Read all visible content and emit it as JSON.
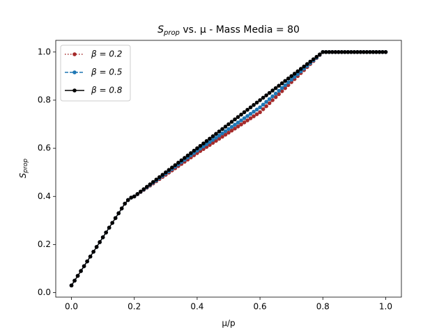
{
  "chart_data": {
    "type": "line",
    "title": [
      "S",
      "prop",
      " vs. μ - Mass Media = 80"
    ],
    "xlabel": "μ/p",
    "ylabel": [
      "S",
      "prop"
    ],
    "x": [
      0,
      0.01,
      0.02,
      0.03,
      0.04,
      0.05,
      0.06,
      0.07,
      0.08,
      0.09,
      0.1,
      0.11,
      0.12,
      0.13,
      0.14,
      0.15,
      0.16,
      0.17,
      0.18,
      0.19,
      0.2,
      0.21,
      0.22,
      0.23,
      0.24,
      0.25,
      0.26,
      0.27,
      0.28,
      0.29,
      0.3,
      0.31,
      0.32,
      0.33,
      0.34,
      0.35,
      0.36,
      0.37,
      0.38,
      0.39,
      0.4,
      0.41,
      0.42,
      0.43,
      0.44,
      0.45,
      0.46,
      0.47,
      0.48,
      0.49,
      0.5,
      0.51,
      0.52,
      0.53,
      0.54,
      0.55,
      0.56,
      0.57,
      0.58,
      0.59,
      0.6,
      0.61,
      0.62,
      0.63,
      0.64,
      0.65,
      0.66,
      0.67,
      0.68,
      0.69,
      0.7,
      0.71,
      0.72,
      0.73,
      0.74,
      0.75,
      0.76,
      0.77,
      0.78,
      0.79,
      0.8,
      0.81,
      0.82,
      0.83,
      0.84,
      0.85,
      0.86,
      0.87,
      0.88,
      0.89,
      0.9,
      0.91,
      0.92,
      0.93,
      0.94,
      0.95,
      0.96,
      0.97,
      0.98,
      0.99,
      1.0
    ],
    "series": [
      {
        "name": "β = 0.2",
        "color": "#a52a2a",
        "linestyle": "dotted",
        "values": [
          0.03,
          0.05,
          0.07,
          0.09,
          0.11,
          0.13,
          0.15,
          0.17,
          0.19,
          0.21,
          0.23,
          0.25,
          0.27,
          0.29,
          0.31,
          0.33,
          0.35,
          0.37,
          0.385,
          0.395,
          0.4,
          0.409,
          0.418,
          0.427,
          0.436,
          0.445,
          0.454,
          0.463,
          0.472,
          0.481,
          0.49,
          0.499,
          0.508,
          0.517,
          0.526,
          0.535,
          0.544,
          0.553,
          0.562,
          0.571,
          0.58,
          0.5885,
          0.597,
          0.6055,
          0.614,
          0.6225,
          0.631,
          0.6395,
          0.648,
          0.6565,
          0.665,
          0.6735,
          0.682,
          0.6905,
          0.699,
          0.7075,
          0.716,
          0.7245,
          0.733,
          0.7415,
          0.75,
          0.7625,
          0.775,
          0.7875,
          0.8,
          0.8125,
          0.825,
          0.8375,
          0.85,
          0.8625,
          0.875,
          0.8875,
          0.9,
          0.9125,
          0.925,
          0.9375,
          0.95,
          0.9625,
          0.975,
          0.9875,
          1.0,
          1.0,
          1.0,
          1.0,
          1.0,
          1.0,
          1.0,
          1.0,
          1.0,
          1.0,
          1.0,
          1.0,
          1.0,
          1.0,
          1.0,
          1.0,
          1.0,
          1.0,
          1.0,
          1.0,
          1.0
        ]
      },
      {
        "name": "β = 0.5",
        "color": "#1f77b4",
        "linestyle": "dashed",
        "values": [
          0.03,
          0.05,
          0.07,
          0.09,
          0.11,
          0.13,
          0.15,
          0.17,
          0.19,
          0.21,
          0.23,
          0.25,
          0.27,
          0.29,
          0.31,
          0.33,
          0.35,
          0.37,
          0.385,
          0.395,
          0.4,
          0.4095,
          0.419,
          0.4285,
          0.438,
          0.4475,
          0.457,
          0.4665,
          0.476,
          0.4855,
          0.495,
          0.5045,
          0.514,
          0.5235,
          0.533,
          0.5425,
          0.552,
          0.5615,
          0.571,
          0.5805,
          0.59,
          0.599,
          0.608,
          0.617,
          0.626,
          0.635,
          0.644,
          0.653,
          0.662,
          0.671,
          0.68,
          0.689,
          0.698,
          0.707,
          0.716,
          0.725,
          0.734,
          0.743,
          0.752,
          0.761,
          0.77,
          0.7815,
          0.793,
          0.8045,
          0.816,
          0.8275,
          0.839,
          0.8505,
          0.862,
          0.8735,
          0.885,
          0.8965,
          0.908,
          0.9195,
          0.931,
          0.9425,
          0.954,
          0.9655,
          0.977,
          0.9885,
          1.0,
          1.0,
          1.0,
          1.0,
          1.0,
          1.0,
          1.0,
          1.0,
          1.0,
          1.0,
          1.0,
          1.0,
          1.0,
          1.0,
          1.0,
          1.0,
          1.0,
          1.0,
          1.0,
          1.0,
          1.0
        ]
      },
      {
        "name": "β = 0.8",
        "color": "#000000",
        "linestyle": "solid",
        "values": [
          0.03,
          0.05,
          0.07,
          0.09,
          0.11,
          0.13,
          0.15,
          0.17,
          0.19,
          0.21,
          0.23,
          0.25,
          0.27,
          0.29,
          0.31,
          0.33,
          0.35,
          0.37,
          0.385,
          0.395,
          0.4,
          0.41,
          0.42,
          0.43,
          0.44,
          0.45,
          0.46,
          0.47,
          0.48,
          0.49,
          0.5,
          0.51,
          0.52,
          0.53,
          0.54,
          0.55,
          0.56,
          0.57,
          0.58,
          0.59,
          0.6,
          0.61,
          0.62,
          0.63,
          0.64,
          0.65,
          0.66,
          0.67,
          0.68,
          0.69,
          0.7,
          0.71,
          0.72,
          0.73,
          0.74,
          0.75,
          0.76,
          0.77,
          0.78,
          0.79,
          0.8,
          0.81,
          0.82,
          0.83,
          0.84,
          0.85,
          0.86,
          0.87,
          0.88,
          0.89,
          0.9,
          0.91,
          0.92,
          0.93,
          0.94,
          0.95,
          0.96,
          0.97,
          0.98,
          0.99,
          1.0,
          1.0,
          1.0,
          1.0,
          1.0,
          1.0,
          1.0,
          1.0,
          1.0,
          1.0,
          1.0,
          1.0,
          1.0,
          1.0,
          1.0,
          1.0,
          1.0,
          1.0,
          1.0,
          1.0,
          1.0
        ]
      }
    ],
    "xlim": [
      -0.05,
      1.05
    ],
    "ylim": [
      -0.0185,
      1.0485
    ],
    "xticks": [
      {
        "value": 0,
        "label": "0.0"
      },
      0.2,
      0.4,
      0.6,
      0.8,
      {
        "value": 1,
        "label": "1.0"
      }
    ],
    "yticks": [
      {
        "value": 0,
        "label": "0.0"
      },
      0.2,
      0.4,
      0.6,
      0.8,
      {
        "value": 1,
        "label": "1.0"
      }
    ],
    "legend": "upper left",
    "grid": false
  }
}
